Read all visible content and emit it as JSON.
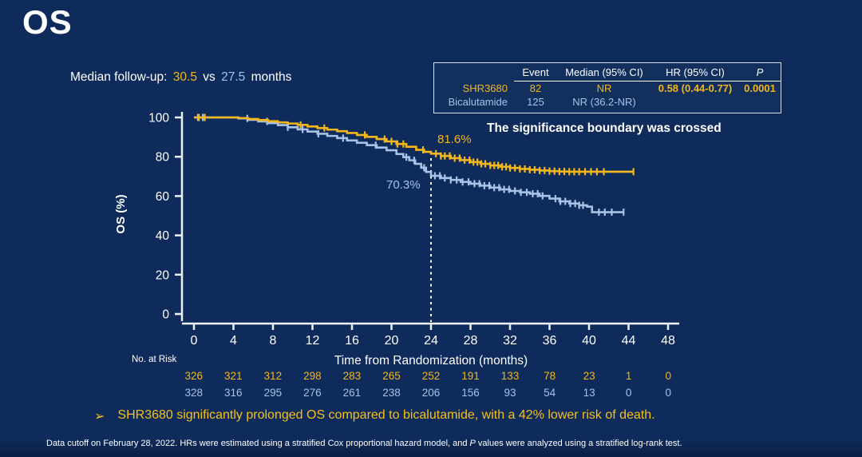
{
  "slide": {
    "title": "OS",
    "median_followup": {
      "label": "Median follow-up:",
      "value1": "30.5",
      "vs": "vs",
      "value2": "27.5",
      "suffix": "months"
    },
    "significance_note": "The significance boundary was crossed",
    "bullet": {
      "marker": "➢",
      "text": "SHR3680 significantly prolonged OS compared to bicalutamide, with a 42% lower risk of death."
    },
    "footnote": {
      "part1": "Data cutoff on February 28, 2022. HRs were estimated using a stratified Cox proportional hazard model, and ",
      "italic": "P",
      "part2": " values were analyzed using a stratified log-rank test."
    }
  },
  "stats_table": {
    "headers": {
      "event": "Event",
      "median": "Median (95% CI)",
      "hr": "HR (95% CI)",
      "p": "P"
    },
    "rows": [
      {
        "name": "SHR3680",
        "event": "82",
        "median": "NR",
        "hr": "0.58 (0.44-0.77)",
        "p": "0.0001"
      },
      {
        "name": "Bicalutamide",
        "event": "125",
        "median": "NR (36.2-NR)",
        "hr": "",
        "p": ""
      }
    ]
  },
  "colors": {
    "background": "#0e2b5b",
    "gold": "#F3B71B",
    "light_blue": "#A6C2E6",
    "white": "#FFFFFF"
  },
  "chart_data": {
    "type": "line",
    "subtype": "kaplan-meier",
    "title": "",
    "xlabel": "Time from Randomization (months)",
    "ylabel": "OS (%)",
    "xlim": [
      0,
      48
    ],
    "ylim": [
      0,
      100
    ],
    "xticks": [
      0,
      4,
      8,
      12,
      16,
      20,
      24,
      28,
      32,
      36,
      40,
      44,
      48
    ],
    "yticks": [
      0,
      20,
      40,
      60,
      80,
      100
    ],
    "grid": false,
    "reference_line": {
      "x": 24,
      "style": "dashed-white"
    },
    "annotations": [
      {
        "text": "81.6%",
        "series": "SHR3680",
        "x": 24,
        "y": 81.6
      },
      {
        "text": "70.3%",
        "series": "Bicalutamide",
        "x": 24,
        "y": 70.3
      }
    ],
    "series": [
      {
        "name": "SHR3680",
        "color": "#F3B71B",
        "points": [
          [
            0,
            100
          ],
          [
            4.5,
            99.7
          ],
          [
            5.5,
            99.2
          ],
          [
            6.5,
            98.7
          ],
          [
            7.5,
            98.1
          ],
          [
            8.5,
            97.5
          ],
          [
            9.5,
            96.9
          ],
          [
            10.5,
            96.2
          ],
          [
            11.5,
            95.4
          ],
          [
            12.5,
            94.6
          ],
          [
            13.5,
            93.8
          ],
          [
            14.5,
            93.0
          ],
          [
            15.5,
            92.1
          ],
          [
            16.5,
            91.1
          ],
          [
            17.5,
            90.1
          ],
          [
            18.5,
            89.0
          ],
          [
            19.5,
            87.8
          ],
          [
            20.5,
            86.5
          ],
          [
            21.5,
            85.1
          ],
          [
            22.5,
            83.5
          ],
          [
            23.3,
            82.5
          ],
          [
            24,
            81.6
          ],
          [
            25,
            80.4
          ],
          [
            26,
            79.3
          ],
          [
            27,
            78.3
          ],
          [
            28,
            77.3
          ],
          [
            29,
            76.4
          ],
          [
            30,
            75.6
          ],
          [
            31,
            74.9
          ],
          [
            32,
            74.3
          ],
          [
            33,
            73.8
          ],
          [
            34,
            73.4
          ],
          [
            35,
            73.0
          ],
          [
            36,
            72.7
          ],
          [
            37,
            72.5
          ],
          [
            38,
            72.4
          ],
          [
            44.5,
            72.4
          ]
        ],
        "censor_marks": [
          0.5,
          1.1,
          10.8,
          13.2,
          17.3,
          19.3,
          20,
          20.6,
          21.2,
          23.2,
          24.5,
          25,
          25.4,
          25.9,
          26.4,
          26.9,
          27.4,
          27.9,
          28.3,
          28.7,
          29.1,
          29.5,
          30,
          30.4,
          30.8,
          31.2,
          31.6,
          32,
          32.5,
          33,
          33.5,
          34,
          34.5,
          35,
          35.5,
          36,
          36.5,
          37,
          37.5,
          38,
          38.5,
          39,
          39.6,
          40.2,
          40.8,
          41.5,
          44.5
        ]
      },
      {
        "name": "Bicalutamide",
        "color": "#A6C2E6",
        "points": [
          [
            0,
            100
          ],
          [
            4.5,
            99.5
          ],
          [
            5.5,
            98.8
          ],
          [
            6.5,
            98.0
          ],
          [
            7.5,
            97.1
          ],
          [
            8.5,
            96.1
          ],
          [
            9.5,
            95.0
          ],
          [
            10.5,
            93.9
          ],
          [
            11.5,
            92.8
          ],
          [
            12.5,
            91.7
          ],
          [
            13.5,
            90.6
          ],
          [
            14.5,
            89.5
          ],
          [
            15.5,
            88.3
          ],
          [
            16.5,
            87.1
          ],
          [
            17.5,
            85.9
          ],
          [
            18.5,
            84.7
          ],
          [
            19.5,
            83.3
          ],
          [
            20.5,
            81.4
          ],
          [
            21.2,
            79.8
          ],
          [
            21.8,
            78.2
          ],
          [
            22.4,
            76.4
          ],
          [
            23,
            74.4
          ],
          [
            23.5,
            72.3
          ],
          [
            24,
            70.3
          ],
          [
            25,
            69.2
          ],
          [
            26,
            68.2
          ],
          [
            27,
            67.2
          ],
          [
            28,
            66.3
          ],
          [
            29,
            65.3
          ],
          [
            30,
            64.3
          ],
          [
            31,
            63.4
          ],
          [
            32,
            62.6
          ],
          [
            33,
            61.9
          ],
          [
            34,
            61.2
          ],
          [
            35,
            60.1
          ],
          [
            36,
            58.7
          ],
          [
            37,
            57.3
          ],
          [
            38,
            56.2
          ],
          [
            39,
            55.3
          ],
          [
            39.8,
            54.6
          ],
          [
            40.3,
            51.8
          ],
          [
            43.5,
            51.8
          ]
        ],
        "censor_marks": [
          0.4,
          0.9,
          5.4,
          7.4,
          9.5,
          11,
          12.6,
          15.1,
          18.4,
          21.5,
          22.3,
          23.3,
          24.4,
          24.9,
          25.4,
          26,
          26.6,
          27.2,
          27.8,
          28.4,
          28.9,
          29.4,
          29.9,
          30.4,
          30.9,
          31.4,
          31.9,
          32.5,
          33.1,
          33.7,
          34.3,
          34.8,
          35.3,
          36.6,
          37.1,
          37.6,
          38.1,
          38.6,
          39,
          39.4,
          41,
          41.6,
          42.3,
          43.5
        ]
      }
    ],
    "no_at_risk": {
      "label": "No. at Risk",
      "times": [
        0,
        4,
        8,
        12,
        16,
        20,
        24,
        28,
        32,
        36,
        40,
        44,
        48
      ],
      "rows": [
        {
          "name": "SHR3680",
          "counts": [
            326,
            321,
            312,
            298,
            283,
            265,
            252,
            191,
            133,
            78,
            23,
            1,
            0
          ]
        },
        {
          "name": "Bicalutamide",
          "counts": [
            328,
            316,
            295,
            276,
            261,
            238,
            206,
            156,
            93,
            54,
            13,
            0,
            0
          ]
        }
      ]
    }
  }
}
